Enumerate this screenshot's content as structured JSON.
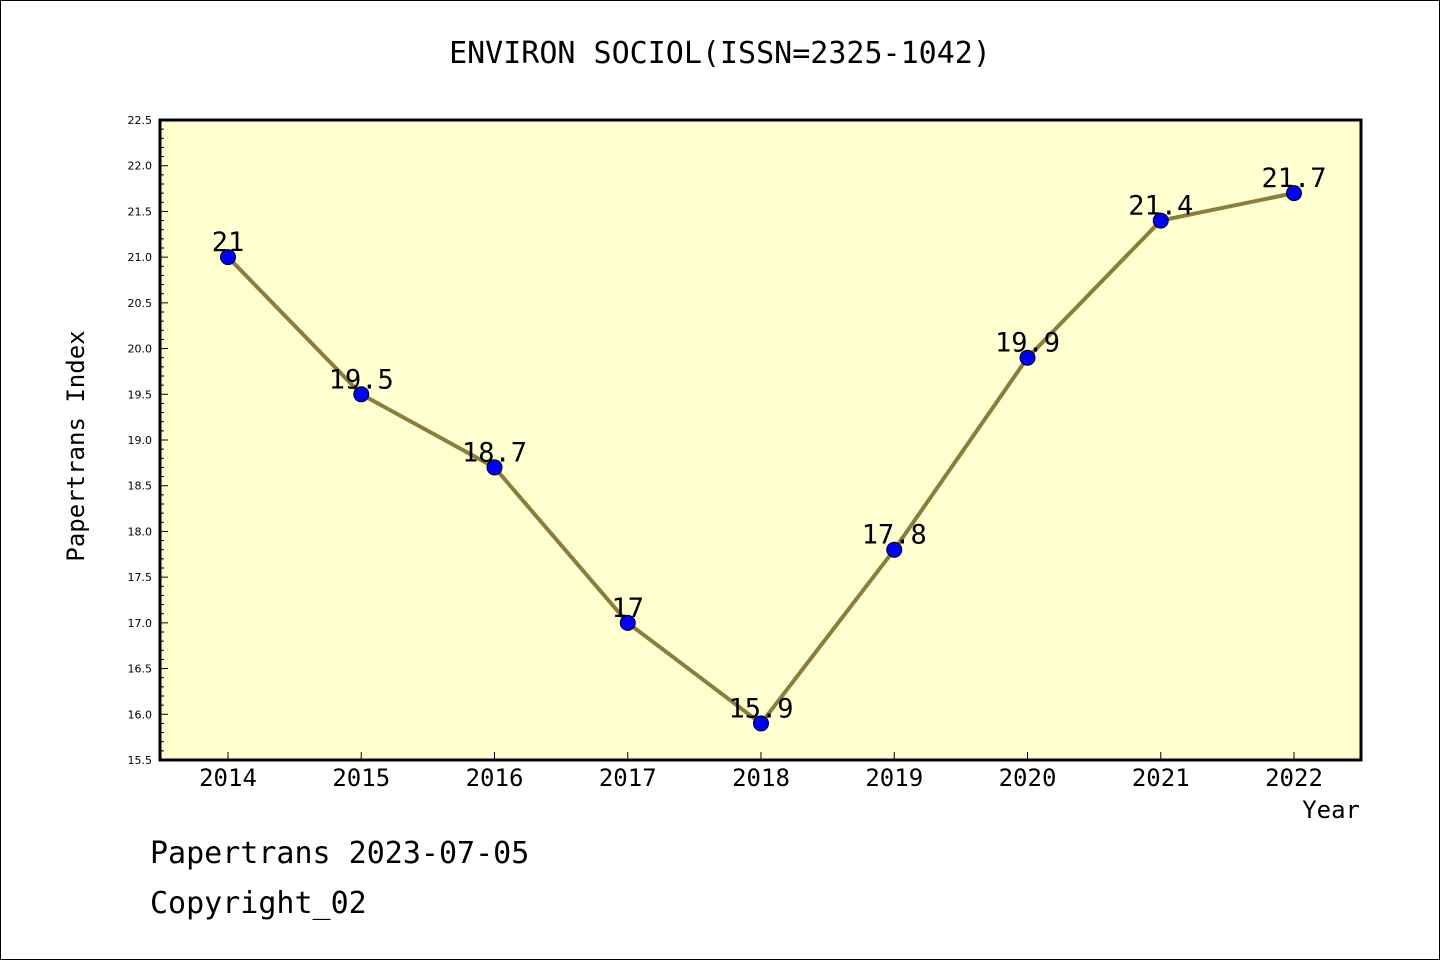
{
  "chart_data": {
    "type": "line",
    "title": "ENVIRON SOCIOL(ISSN=2325-1042)",
    "xlabel": "Year",
    "ylabel": "Papertrans Index",
    "x": [
      "2014",
      "2015",
      "2016",
      "2017",
      "2018",
      "2019",
      "2020",
      "2021",
      "2022"
    ],
    "series": [
      {
        "values": [
          21,
          19.5,
          18.7,
          17,
          15.9,
          17.8,
          19.9,
          21.4,
          21.7
        ]
      }
    ],
    "data_labels": [
      "21",
      "19.5",
      "18.7",
      "17",
      "15.9",
      "17.8",
      "19.9",
      "21.4",
      "21.7"
    ],
    "ylim": [
      15.5,
      22.5
    ],
    "yticks": [
      "15.5",
      "16.0",
      "16.5",
      "17.0",
      "17.5",
      "18.0",
      "18.5",
      "19.0",
      "19.5",
      "20.0",
      "20.5",
      "21.0",
      "21.5",
      "22.0",
      "22.5"
    ],
    "grid": false,
    "colors": {
      "plot_bg": "#ffffd0",
      "line": "#8b7d3a",
      "marker": "#0000ff"
    }
  },
  "footer": {
    "line1": "Papertrans 2023-07-05",
    "line2": "Copyright_02"
  }
}
